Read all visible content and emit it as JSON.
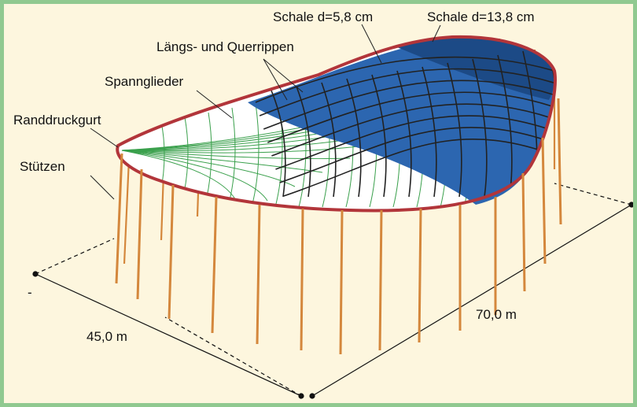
{
  "labels": {
    "shell_thin": "Schale d=5,8 cm",
    "shell_thick": "Schale d=13,8 cm",
    "ribs": "Längs- und Querrippen",
    "tendons": "Spannglieder",
    "edge_ring": "Randdruckgurt",
    "columns": "Stützen",
    "width": "45,0 m",
    "length": "70,0 m",
    "dash_mark": "-"
  },
  "colors": {
    "background": "#fdf6de",
    "frame": "#90c990",
    "shell": "#2c66b0",
    "shell_thick": "#1c4a86",
    "edge_ring": "#b2353a",
    "columns": "#d4873c",
    "tendons": "#3aa04c",
    "ribs": "#222222"
  }
}
